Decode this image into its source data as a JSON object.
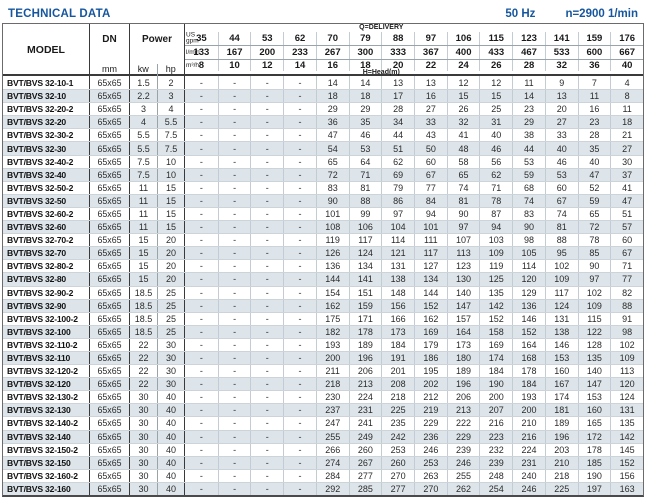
{
  "page": {
    "title": "TECHNICAL DATA",
    "frequency": "50 Hz",
    "speed": "n=2900 1/min"
  },
  "colors": {
    "accent_blue": "#15569e",
    "row_alt": "#dde5eb",
    "border_dark": "#3a3a3a",
    "border_light": "#c3ccd2"
  },
  "table": {
    "header": {
      "model_label": "MODEL",
      "dn_label": "DN",
      "dn_unit": "mm",
      "power_label": "Power",
      "power_units": [
        "kw",
        "hp"
      ],
      "delivery_label": "Q=DELIVERY",
      "head_label": "H=Head(m)",
      "flow_rows": [
        {
          "unit_lines": [
            "US",
            "gpm"
          ],
          "values": [
            "35",
            "44",
            "53",
            "62",
            "70",
            "79",
            "88",
            "97",
            "106",
            "115",
            "123",
            "141",
            "159",
            "176"
          ]
        },
        {
          "unit_lines": [
            "l/min"
          ],
          "values": [
            "133",
            "167",
            "200",
            "233",
            "267",
            "300",
            "333",
            "367",
            "400",
            "433",
            "467",
            "533",
            "600",
            "667"
          ]
        },
        {
          "unit_lines": [
            "m³/h"
          ],
          "values": [
            "8",
            "10",
            "12",
            "14",
            "16",
            "18",
            "20",
            "22",
            "24",
            "26",
            "28",
            "32",
            "36",
            "40"
          ]
        }
      ]
    },
    "rows": [
      {
        "model": "BVT/BVS 32-10-1",
        "dn": "65x65",
        "kw": "1.5",
        "hp": "2",
        "head": [
          "-",
          "-",
          "-",
          "-",
          "14",
          "14",
          "13",
          "13",
          "12",
          "12",
          "11",
          "9",
          "7",
          "4"
        ]
      },
      {
        "model": "BVT/BVS 32-10",
        "dn": "65x65",
        "kw": "2.2",
        "hp": "3",
        "head": [
          "-",
          "-",
          "-",
          "-",
          "18",
          "18",
          "17",
          "16",
          "15",
          "15",
          "14",
          "13",
          "11",
          "8"
        ]
      },
      {
        "model": "BVT/BVS 32-20-2",
        "dn": "65x65",
        "kw": "3",
        "hp": "4",
        "head": [
          "-",
          "-",
          "-",
          "-",
          "29",
          "29",
          "28",
          "27",
          "26",
          "25",
          "23",
          "20",
          "16",
          "11"
        ]
      },
      {
        "model": "BVT/BVS 32-20",
        "dn": "65x65",
        "kw": "4",
        "hp": "5.5",
        "head": [
          "-",
          "-",
          "-",
          "-",
          "36",
          "35",
          "34",
          "33",
          "32",
          "31",
          "29",
          "27",
          "23",
          "18"
        ]
      },
      {
        "model": "BVT/BVS 32-30-2",
        "dn": "65x65",
        "kw": "5.5",
        "hp": "7.5",
        "head": [
          "-",
          "-",
          "-",
          "-",
          "47",
          "46",
          "44",
          "43",
          "41",
          "40",
          "38",
          "33",
          "28",
          "21"
        ]
      },
      {
        "model": "BVT/BVS 32-30",
        "dn": "65x65",
        "kw": "5.5",
        "hp": "7.5",
        "head": [
          "-",
          "-",
          "-",
          "-",
          "54",
          "53",
          "51",
          "50",
          "48",
          "46",
          "44",
          "40",
          "35",
          "27"
        ]
      },
      {
        "model": "BVT/BVS 32-40-2",
        "dn": "65x65",
        "kw": "7.5",
        "hp": "10",
        "head": [
          "-",
          "-",
          "-",
          "-",
          "65",
          "64",
          "62",
          "60",
          "58",
          "56",
          "53",
          "46",
          "40",
          "30"
        ]
      },
      {
        "model": "BVT/BVS 32-40",
        "dn": "65x65",
        "kw": "7.5",
        "hp": "10",
        "head": [
          "-",
          "-",
          "-",
          "-",
          "72",
          "71",
          "69",
          "67",
          "65",
          "62",
          "59",
          "53",
          "47",
          "37"
        ]
      },
      {
        "model": "BVT/BVS 32-50-2",
        "dn": "65x65",
        "kw": "11",
        "hp": "15",
        "head": [
          "-",
          "-",
          "-",
          "-",
          "83",
          "81",
          "79",
          "77",
          "74",
          "71",
          "68",
          "60",
          "52",
          "41"
        ]
      },
      {
        "model": "BVT/BVS 32-50",
        "dn": "65x65",
        "kw": "11",
        "hp": "15",
        "head": [
          "-",
          "-",
          "-",
          "-",
          "90",
          "88",
          "86",
          "84",
          "81",
          "78",
          "74",
          "67",
          "59",
          "47"
        ]
      },
      {
        "model": "BVT/BVS 32-60-2",
        "dn": "65x65",
        "kw": "11",
        "hp": "15",
        "head": [
          "-",
          "-",
          "-",
          "-",
          "101",
          "99",
          "97",
          "94",
          "90",
          "87",
          "83",
          "74",
          "65",
          "51"
        ]
      },
      {
        "model": "BVT/BVS 32-60",
        "dn": "65x65",
        "kw": "11",
        "hp": "15",
        "head": [
          "-",
          "-",
          "-",
          "-",
          "108",
          "106",
          "104",
          "101",
          "97",
          "94",
          "90",
          "81",
          "72",
          "57"
        ]
      },
      {
        "model": "BVT/BVS 32-70-2",
        "dn": "65x65",
        "kw": "15",
        "hp": "20",
        "head": [
          "-",
          "-",
          "-",
          "-",
          "119",
          "117",
          "114",
          "111",
          "107",
          "103",
          "98",
          "88",
          "78",
          "60"
        ]
      },
      {
        "model": "BVT/BVS 32-70",
        "dn": "65x65",
        "kw": "15",
        "hp": "20",
        "head": [
          "-",
          "-",
          "-",
          "-",
          "126",
          "124",
          "121",
          "117",
          "113",
          "109",
          "105",
          "95",
          "85",
          "67"
        ]
      },
      {
        "model": "BVT/BVS 32-80-2",
        "dn": "65x65",
        "kw": "15",
        "hp": "20",
        "head": [
          "-",
          "-",
          "-",
          "-",
          "136",
          "134",
          "131",
          "127",
          "123",
          "119",
          "114",
          "102",
          "90",
          "71"
        ]
      },
      {
        "model": "BVT/BVS 32-80",
        "dn": "65x65",
        "kw": "15",
        "hp": "20",
        "head": [
          "-",
          "-",
          "-",
          "-",
          "144",
          "141",
          "138",
          "134",
          "130",
          "125",
          "120",
          "109",
          "97",
          "77"
        ]
      },
      {
        "model": "BVT/BVS 32-90-2",
        "dn": "65x65",
        "kw": "18.5",
        "hp": "25",
        "head": [
          "-",
          "-",
          "-",
          "-",
          "154",
          "151",
          "148",
          "144",
          "140",
          "135",
          "129",
          "117",
          "102",
          "82"
        ]
      },
      {
        "model": "BVT/BVS 32-90",
        "dn": "65x65",
        "kw": "18.5",
        "hp": "25",
        "head": [
          "-",
          "-",
          "-",
          "-",
          "162",
          "159",
          "156",
          "152",
          "147",
          "142",
          "136",
          "124",
          "109",
          "88"
        ]
      },
      {
        "model": "BVT/BVS 32-100-2",
        "dn": "65x65",
        "kw": "18.5",
        "hp": "25",
        "head": [
          "-",
          "-",
          "-",
          "-",
          "175",
          "171",
          "166",
          "162",
          "157",
          "152",
          "146",
          "131",
          "115",
          "91"
        ]
      },
      {
        "model": "BVT/BVS 32-100",
        "dn": "65x65",
        "kw": "18.5",
        "hp": "25",
        "head": [
          "-",
          "-",
          "-",
          "-",
          "182",
          "178",
          "173",
          "169",
          "164",
          "158",
          "152",
          "138",
          "122",
          "98"
        ]
      },
      {
        "model": "BVT/BVS 32-110-2",
        "dn": "65x65",
        "kw": "22",
        "hp": "30",
        "head": [
          "-",
          "-",
          "-",
          "-",
          "193",
          "189",
          "184",
          "179",
          "173",
          "169",
          "164",
          "146",
          "128",
          "102"
        ]
      },
      {
        "model": "BVT/BVS 32-110",
        "dn": "65x65",
        "kw": "22",
        "hp": "30",
        "head": [
          "-",
          "-",
          "-",
          "-",
          "200",
          "196",
          "191",
          "186",
          "180",
          "174",
          "168",
          "153",
          "135",
          "109"
        ]
      },
      {
        "model": "BVT/BVS 32-120-2",
        "dn": "65x65",
        "kw": "22",
        "hp": "30",
        "head": [
          "-",
          "-",
          "-",
          "-",
          "211",
          "206",
          "201",
          "195",
          "189",
          "184",
          "178",
          "160",
          "140",
          "113"
        ]
      },
      {
        "model": "BVT/BVS 32-120",
        "dn": "65x65",
        "kw": "22",
        "hp": "30",
        "head": [
          "-",
          "-",
          "-",
          "-",
          "218",
          "213",
          "208",
          "202",
          "196",
          "190",
          "184",
          "167",
          "147",
          "120"
        ]
      },
      {
        "model": "BVT/BVS 32-130-2",
        "dn": "65x65",
        "kw": "30",
        "hp": "40",
        "head": [
          "-",
          "-",
          "-",
          "-",
          "230",
          "224",
          "218",
          "212",
          "206",
          "200",
          "193",
          "174",
          "153",
          "124"
        ]
      },
      {
        "model": "BVT/BVS 32-130",
        "dn": "65x65",
        "kw": "30",
        "hp": "40",
        "head": [
          "-",
          "-",
          "-",
          "-",
          "237",
          "231",
          "225",
          "219",
          "213",
          "207",
          "200",
          "181",
          "160",
          "131"
        ]
      },
      {
        "model": "BVT/BVS 32-140-2",
        "dn": "65x65",
        "kw": "30",
        "hp": "40",
        "head": [
          "-",
          "-",
          "-",
          "-",
          "247",
          "241",
          "235",
          "229",
          "222",
          "216",
          "210",
          "189",
          "165",
          "135"
        ]
      },
      {
        "model": "BVT/BVS 32-140",
        "dn": "65x65",
        "kw": "30",
        "hp": "40",
        "head": [
          "-",
          "-",
          "-",
          "-",
          "255",
          "249",
          "242",
          "236",
          "229",
          "223",
          "216",
          "196",
          "172",
          "142"
        ]
      },
      {
        "model": "BVT/BVS 32-150-2",
        "dn": "65x65",
        "kw": "30",
        "hp": "40",
        "head": [
          "-",
          "-",
          "-",
          "-",
          "266",
          "260",
          "253",
          "246",
          "239",
          "232",
          "224",
          "203",
          "178",
          "145"
        ]
      },
      {
        "model": "BVT/BVS 32-150",
        "dn": "65x65",
        "kw": "30",
        "hp": "40",
        "head": [
          "-",
          "-",
          "-",
          "-",
          "274",
          "267",
          "260",
          "253",
          "246",
          "239",
          "231",
          "210",
          "185",
          "152"
        ]
      },
      {
        "model": "BVT/BVS 32-160-2",
        "dn": "65x65",
        "kw": "30",
        "hp": "40",
        "head": [
          "-",
          "-",
          "-",
          "-",
          "284",
          "277",
          "270",
          "263",
          "255",
          "248",
          "240",
          "218",
          "190",
          "156"
        ]
      },
      {
        "model": "BVT/BVS 32-160",
        "dn": "65x65",
        "kw": "30",
        "hp": "40",
        "head": [
          "-",
          "-",
          "-",
          "-",
          "292",
          "285",
          "277",
          "270",
          "262",
          "254",
          "246",
          "225",
          "197",
          "163"
        ]
      }
    ]
  }
}
